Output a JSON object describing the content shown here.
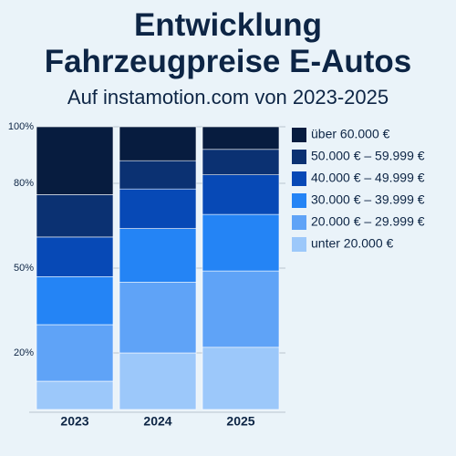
{
  "chart_data": {
    "type": "stacked-bar",
    "title": "Entwicklung Fahrzeugpreise E-Autos",
    "subtitle": "Auf instamotion.com von 2023-2025",
    "categories": [
      "2023",
      "2024",
      "2025"
    ],
    "series": [
      {
        "name": "unter 20.000 €",
        "color": "#9cc8fa",
        "values": [
          10,
          20,
          22
        ]
      },
      {
        "name": "20.000 € – 29.999 €",
        "color": "#5fa3f7",
        "values": [
          20,
          25,
          27
        ]
      },
      {
        "name": "30.000 € – 39.999 €",
        "color": "#2484f5",
        "values": [
          17,
          19,
          20
        ]
      },
      {
        "name": "40.000 € – 49.999 €",
        "color": "#0749b6",
        "values": [
          14,
          14,
          14
        ]
      },
      {
        "name": "50.000 € – 59.999 €",
        "color": "#0b3172",
        "values": [
          15,
          10,
          9
        ]
      },
      {
        "name": "über 60.000 €",
        "color": "#071c3f",
        "values": [
          24,
          12,
          8
        ]
      }
    ],
    "ylim": [
      0,
      100
    ],
    "yticks": [
      {
        "value": 20,
        "label": "20%"
      },
      {
        "value": 50,
        "label": "50%"
      },
      {
        "value": 80,
        "label": "80%"
      },
      {
        "value": 100,
        "label": "100%"
      }
    ],
    "grid": true
  }
}
